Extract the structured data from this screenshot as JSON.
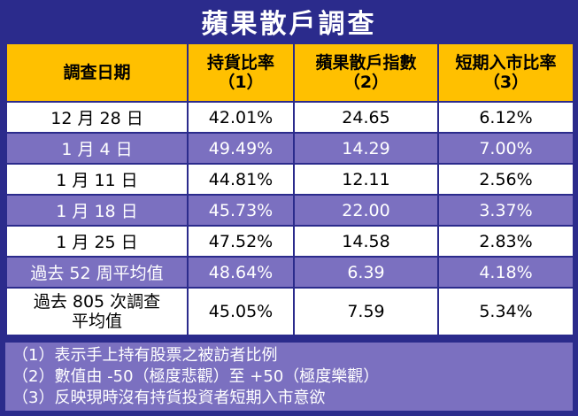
{
  "title": "蘋果散戶調查",
  "headers": [
    {
      "line1": "調查日期",
      "line2": ""
    },
    {
      "line1": "持貨比率",
      "line2": "（1）"
    },
    {
      "line1": "蘋果散戶指數",
      "line2": "（2）"
    },
    {
      "line1": "短期入市比率",
      "line2": "（3）"
    }
  ],
  "rows": [
    {
      "date": "12 月 28 日",
      "date2": "",
      "holding": "42.01%",
      "index": "24.65",
      "entry": "6.12%"
    },
    {
      "date": "1 月 4 日",
      "date2": "",
      "holding": "49.49%",
      "index": "14.29",
      "entry": "7.00%"
    },
    {
      "date": "1 月 11 日",
      "date2": "",
      "holding": "44.81%",
      "index": "12.11",
      "entry": "2.56%"
    },
    {
      "date": "1 月 18 日",
      "date2": "",
      "holding": "45.73%",
      "index": "22.00",
      "entry": "3.37%"
    },
    {
      "date": "1 月 25 日",
      "date2": "",
      "holding": "47.52%",
      "index": "14.58",
      "entry": "2.83%"
    },
    {
      "date": "過去 52 周平均值",
      "date2": "",
      "holding": "48.64%",
      "index": "6.39",
      "entry": "4.18%"
    },
    {
      "date": "過去 805 次調查",
      "date2": "平均值",
      "holding": "45.05%",
      "index": "7.59",
      "entry": "5.34%"
    }
  ],
  "notes": [
    "（1）表示手上持有股票之被訪者比例",
    "（2）數值由 -50（極度悲觀）至 +50（極度樂觀）",
    "（3）反映現時沒有持貨投資者短期入市意欲"
  ]
}
